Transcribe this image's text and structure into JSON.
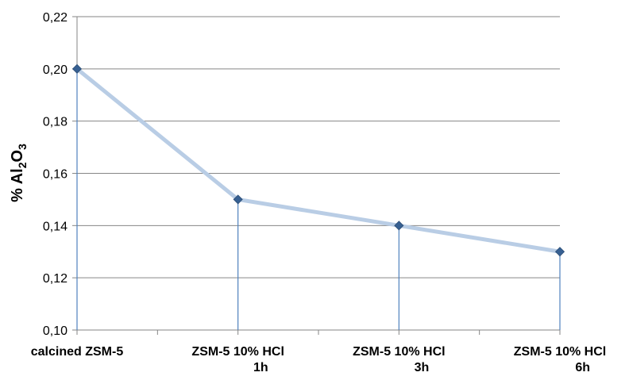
{
  "chart_data": {
    "type": "line",
    "categories": [
      [
        "calcined ZSM-5"
      ],
      [
        "ZSM-5 10% HCl",
        "1h"
      ],
      [
        "ZSM-5 10% HCl",
        "3h"
      ],
      [
        "ZSM-5 10% HCl",
        "6h"
      ]
    ],
    "series": [
      {
        "values": [
          0.2,
          0.15,
          0.14,
          0.13
        ]
      }
    ],
    "ylabel": {
      "prefix": "% Al",
      "sub1": "2",
      "mid": "O",
      "sub2": "3"
    },
    "yticks": [
      "0,10",
      "0,12",
      "0,14",
      "0,16",
      "0,18",
      "0,20",
      "0,22"
    ],
    "ylim": [
      0.1,
      0.22
    ],
    "grid": true,
    "drop_lines": true,
    "colors": {
      "line": "#b9cde5",
      "marker": "#376092",
      "drop": "#4f81bd",
      "grid": "#868686",
      "axis": "#868686"
    }
  }
}
